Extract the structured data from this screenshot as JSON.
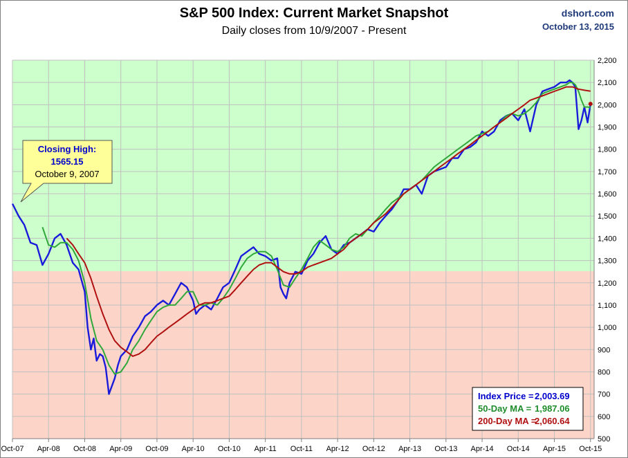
{
  "header": {
    "title": "S&P 500 Index: Current Market Snapshot",
    "subtitle": "Daily closes from 10/9/2007 - Present",
    "source": "dshort.com",
    "date": "October 13, 2015"
  },
  "callout": {
    "line1": "Closing High:",
    "line2": "1565.15",
    "line3": "October 9, 2007"
  },
  "summary": {
    "index_label": "Index Price =",
    "index_value": "2,003.69",
    "ma50_label": "50-Day MA =",
    "ma50_value": "1,987.06",
    "ma200_label": "200-Day MA =",
    "ma200_value": "2,060.64"
  },
  "colors": {
    "index": "#1a1adb",
    "ma50": "#2fa83a",
    "ma200": "#b01010",
    "zone_above": "#ccffcc",
    "zone_below": "#fcd5c8",
    "callout_bg": "#ffff99",
    "label_blue": "#0000cc",
    "label_green": "#1e8c2a",
    "label_red": "#b01010"
  },
  "chart_data": {
    "type": "line",
    "x_tick_labels": [
      "Oct-07",
      "Apr-08",
      "Oct-08",
      "Apr-09",
      "Oct-09",
      "Apr-10",
      "Oct-10",
      "Apr-11",
      "Oct-11",
      "Apr-12",
      "Oct-12",
      "Apr-13",
      "Oct-13",
      "Apr-14",
      "Oct-14",
      "Apr-15",
      "Oct-15"
    ],
    "y_tick_labels": [
      "500",
      "600",
      "700",
      "800",
      "900",
      "1,000",
      "1,100",
      "1,200",
      "1,300",
      "1,400",
      "1,500",
      "1,600",
      "1,700",
      "1,800",
      "1,900",
      "2,000",
      "2,100",
      "2,200"
    ],
    "ylim": [
      500,
      2200
    ],
    "xlim": [
      0,
      16.1
    ],
    "zone_threshold": 1252,
    "grid": true,
    "series": [
      {
        "name": "Index Price",
        "x": [
          0,
          0.17,
          0.33,
          0.5,
          0.67,
          0.83,
          1,
          1.17,
          1.33,
          1.5,
          1.67,
          1.83,
          2,
          2.08,
          2.17,
          2.25,
          2.33,
          2.42,
          2.5,
          2.58,
          2.67,
          2.83,
          2.92,
          3,
          3.17,
          3.33,
          3.5,
          3.67,
          3.83,
          4,
          4.17,
          4.33,
          4.5,
          4.67,
          4.83,
          5,
          5.08,
          5.17,
          5.33,
          5.5,
          5.67,
          5.83,
          6,
          6.17,
          6.33,
          6.5,
          6.67,
          6.83,
          7,
          7.17,
          7.33,
          7.42,
          7.5,
          7.58,
          7.67,
          7.83,
          8,
          8.17,
          8.33,
          8.5,
          8.67,
          8.83,
          9,
          9.17,
          9.33,
          9.5,
          9.67,
          9.83,
          10,
          10.17,
          10.33,
          10.5,
          10.67,
          10.83,
          11,
          11.17,
          11.33,
          11.5,
          11.67,
          11.83,
          12,
          12.17,
          12.33,
          12.5,
          12.67,
          12.83,
          13,
          13.17,
          13.33,
          13.5,
          13.67,
          13.83,
          14,
          14.17,
          14.33,
          14.5,
          14.67,
          14.83,
          15,
          15.17,
          15.33,
          15.42,
          15.5,
          15.58,
          15.67,
          15.75,
          15.83,
          15.92,
          16
        ],
        "y": [
          1555,
          1500,
          1460,
          1380,
          1370,
          1280,
          1330,
          1400,
          1420,
          1370,
          1290,
          1260,
          1160,
          1000,
          900,
          950,
          850,
          880,
          870,
          820,
          700,
          770,
          830,
          870,
          900,
          960,
          1000,
          1050,
          1070,
          1100,
          1120,
          1100,
          1150,
          1200,
          1180,
          1120,
          1060,
          1080,
          1100,
          1080,
          1130,
          1180,
          1200,
          1260,
          1320,
          1340,
          1360,
          1330,
          1320,
          1300,
          1310,
          1180,
          1150,
          1130,
          1200,
          1250,
          1240,
          1300,
          1330,
          1380,
          1410,
          1350,
          1330,
          1370,
          1380,
          1400,
          1420,
          1440,
          1430,
          1470,
          1500,
          1530,
          1570,
          1620,
          1620,
          1640,
          1600,
          1680,
          1700,
          1710,
          1720,
          1760,
          1760,
          1800,
          1810,
          1830,
          1880,
          1860,
          1880,
          1930,
          1950,
          1960,
          1930,
          1980,
          1880,
          2000,
          2060,
          2070,
          2080,
          2100,
          2100,
          2110,
          2100,
          2080,
          1890,
          1930,
          1990,
          1920,
          2004
        ]
      },
      {
        "name": "50-Day MA",
        "x": [
          0.83,
          1,
          1.17,
          1.33,
          1.5,
          1.67,
          1.83,
          2,
          2.17,
          2.25,
          2.33,
          2.5,
          2.67,
          2.83,
          3,
          3.17,
          3.33,
          3.5,
          3.67,
          3.83,
          4,
          4.17,
          4.33,
          4.5,
          4.67,
          4.83,
          5,
          5.17,
          5.33,
          5.5,
          5.67,
          5.83,
          6,
          6.17,
          6.33,
          6.5,
          6.67,
          6.83,
          7,
          7.17,
          7.33,
          7.5,
          7.67,
          7.83,
          8,
          8.17,
          8.33,
          8.5,
          8.67,
          8.83,
          9,
          9.17,
          9.33,
          9.5,
          9.67,
          9.83,
          10,
          10.17,
          10.33,
          10.5,
          10.67,
          10.83,
          11,
          11.17,
          11.33,
          11.5,
          11.67,
          11.83,
          12,
          12.17,
          12.33,
          12.5,
          12.67,
          12.83,
          13,
          13.17,
          13.33,
          13.5,
          13.67,
          13.83,
          14,
          14.17,
          14.33,
          14.5,
          14.67,
          14.83,
          15,
          15.17,
          15.33,
          15.42,
          15.5,
          15.58,
          15.67,
          15.75,
          15.83,
          15.92,
          16
        ],
        "y": [
          1450,
          1370,
          1360,
          1380,
          1380,
          1350,
          1300,
          1200,
          1040,
          990,
          940,
          900,
          830,
          790,
          800,
          840,
          900,
          940,
          990,
          1030,
          1070,
          1090,
          1100,
          1100,
          1130,
          1160,
          1160,
          1100,
          1100,
          1110,
          1100,
          1130,
          1170,
          1220,
          1270,
          1310,
          1330,
          1340,
          1340,
          1320,
          1260,
          1190,
          1180,
          1220,
          1260,
          1310,
          1360,
          1390,
          1370,
          1350,
          1340,
          1360,
          1400,
          1420,
          1410,
          1440,
          1470,
          1500,
          1530,
          1560,
          1580,
          1600,
          1620,
          1640,
          1660,
          1690,
          1720,
          1740,
          1760,
          1780,
          1800,
          1820,
          1840,
          1860,
          1870,
          1880,
          1900,
          1920,
          1950,
          1960,
          1950,
          1960,
          1980,
          2010,
          2050,
          2060,
          2070,
          2080,
          2090,
          2100,
          2100,
          2090,
          2060,
          2020,
          1990,
          1990,
          1987
        ]
      },
      {
        "name": "200-Day MA",
        "x": [
          1.5,
          1.67,
          1.83,
          2,
          2.17,
          2.33,
          2.5,
          2.67,
          2.83,
          3,
          3.17,
          3.33,
          3.5,
          3.67,
          3.83,
          4,
          4.17,
          4.33,
          4.5,
          4.67,
          4.83,
          5,
          5.17,
          5.33,
          5.5,
          5.67,
          5.83,
          6,
          6.17,
          6.33,
          6.5,
          6.67,
          6.83,
          7,
          7.17,
          7.33,
          7.5,
          7.67,
          7.83,
          8,
          8.17,
          8.33,
          8.5,
          8.67,
          8.83,
          9,
          9.17,
          9.33,
          9.5,
          9.67,
          9.83,
          10,
          10.17,
          10.33,
          10.5,
          10.67,
          10.83,
          11,
          11.17,
          11.33,
          11.5,
          11.67,
          11.83,
          12,
          12.17,
          12.33,
          12.5,
          12.67,
          12.83,
          13,
          13.17,
          13.33,
          13.5,
          13.67,
          13.83,
          14,
          14.17,
          14.33,
          14.5,
          14.67,
          14.83,
          15,
          15.17,
          15.33,
          15.5,
          15.67,
          15.83,
          16
        ],
        "y": [
          1400,
          1370,
          1330,
          1290,
          1220,
          1140,
          1060,
          990,
          940,
          910,
          890,
          870,
          880,
          900,
          930,
          960,
          980,
          1000,
          1020,
          1040,
          1060,
          1080,
          1100,
          1110,
          1110,
          1120,
          1130,
          1140,
          1170,
          1200,
          1230,
          1260,
          1280,
          1290,
          1290,
          1270,
          1250,
          1240,
          1240,
          1250,
          1270,
          1280,
          1290,
          1300,
          1310,
          1330,
          1350,
          1380,
          1400,
          1420,
          1440,
          1470,
          1490,
          1510,
          1540,
          1570,
          1600,
          1620,
          1640,
          1660,
          1680,
          1700,
          1720,
          1740,
          1760,
          1780,
          1800,
          1820,
          1840,
          1860,
          1880,
          1900,
          1920,
          1940,
          1960,
          1980,
          2000,
          2020,
          2030,
          2040,
          2050,
          2060,
          2070,
          2080,
          2080,
          2070,
          2065,
          2061
        ]
      }
    ]
  }
}
